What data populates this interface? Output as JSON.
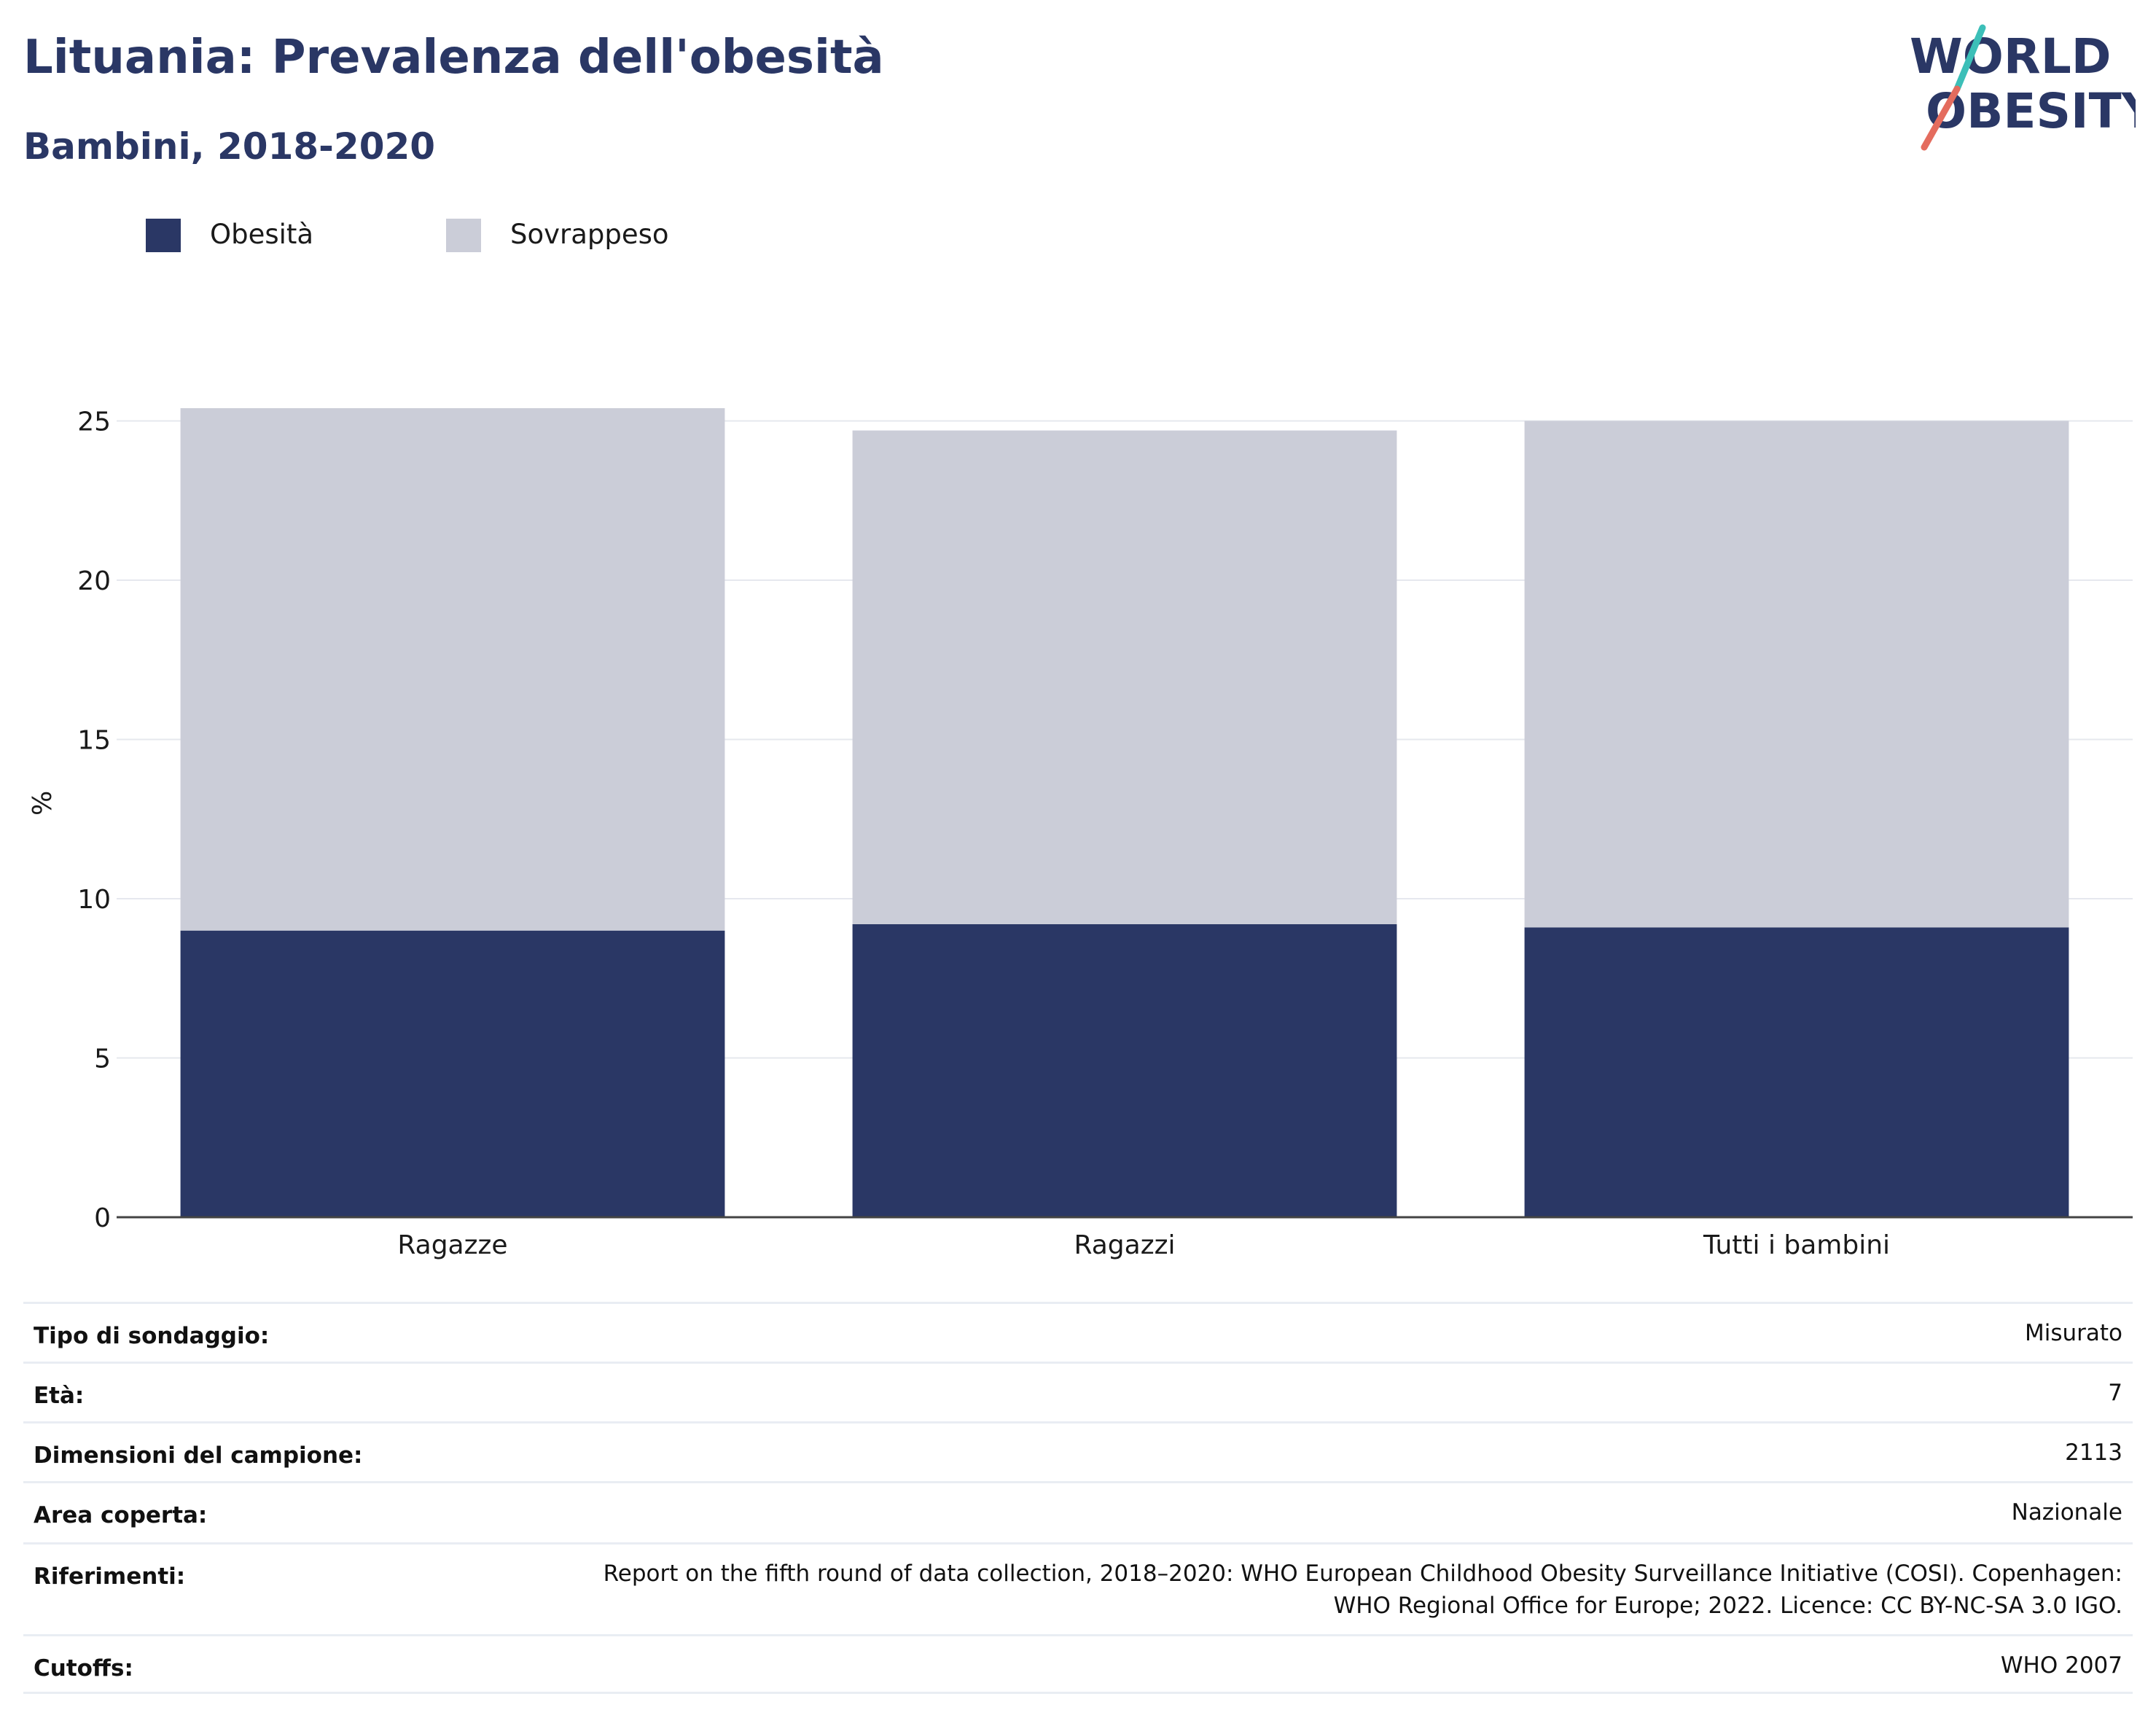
{
  "header": {
    "title": "Lituania: Prevalenza dell'obesità",
    "subtitle": "Bambini, 2018-2020"
  },
  "logo": {
    "line1": "WORLD",
    "line2": "OBESITY"
  },
  "colors": {
    "obesity": "#2a3765",
    "overweight": "#cbcdd8",
    "title": "#2a3765",
    "logo_teal": "#3cbfb8",
    "logo_coral": "#e46c5e"
  },
  "chart_data": {
    "type": "bar",
    "stacked": true,
    "categories": [
      "Ragazze",
      "Ragazzi",
      "Tutti i bambini"
    ],
    "series": [
      {
        "name": "Obesità",
        "values": [
          9.0,
          9.2,
          9.1
        ]
      },
      {
        "name": "Sovrappeso",
        "values": [
          16.4,
          15.5,
          15.9
        ]
      }
    ],
    "ylabel": "%",
    "ylim": [
      0,
      27
    ],
    "yticks": [
      0,
      5,
      10,
      15,
      20,
      25
    ],
    "grid": true,
    "legend_position": "top-left"
  },
  "info": [
    {
      "label": "Tipo di sondaggio:",
      "value": "Misurato"
    },
    {
      "label": "Età:",
      "value": "7"
    },
    {
      "label": "Dimensioni del campione:",
      "value": "2113"
    },
    {
      "label": "Area coperta:",
      "value": "Nazionale"
    },
    {
      "label": "Riferimenti:",
      "value": "Report on the fifth round of data collection, 2018–2020: WHO European Childhood Obesity Surveillance Initiative (COSI). Copenhagen: WHO Regional Office for Europe; 2022. Licence: CC BY-NC-SA 3.0 IGO."
    },
    {
      "label": "Cutoffs:",
      "value": "WHO 2007"
    }
  ]
}
